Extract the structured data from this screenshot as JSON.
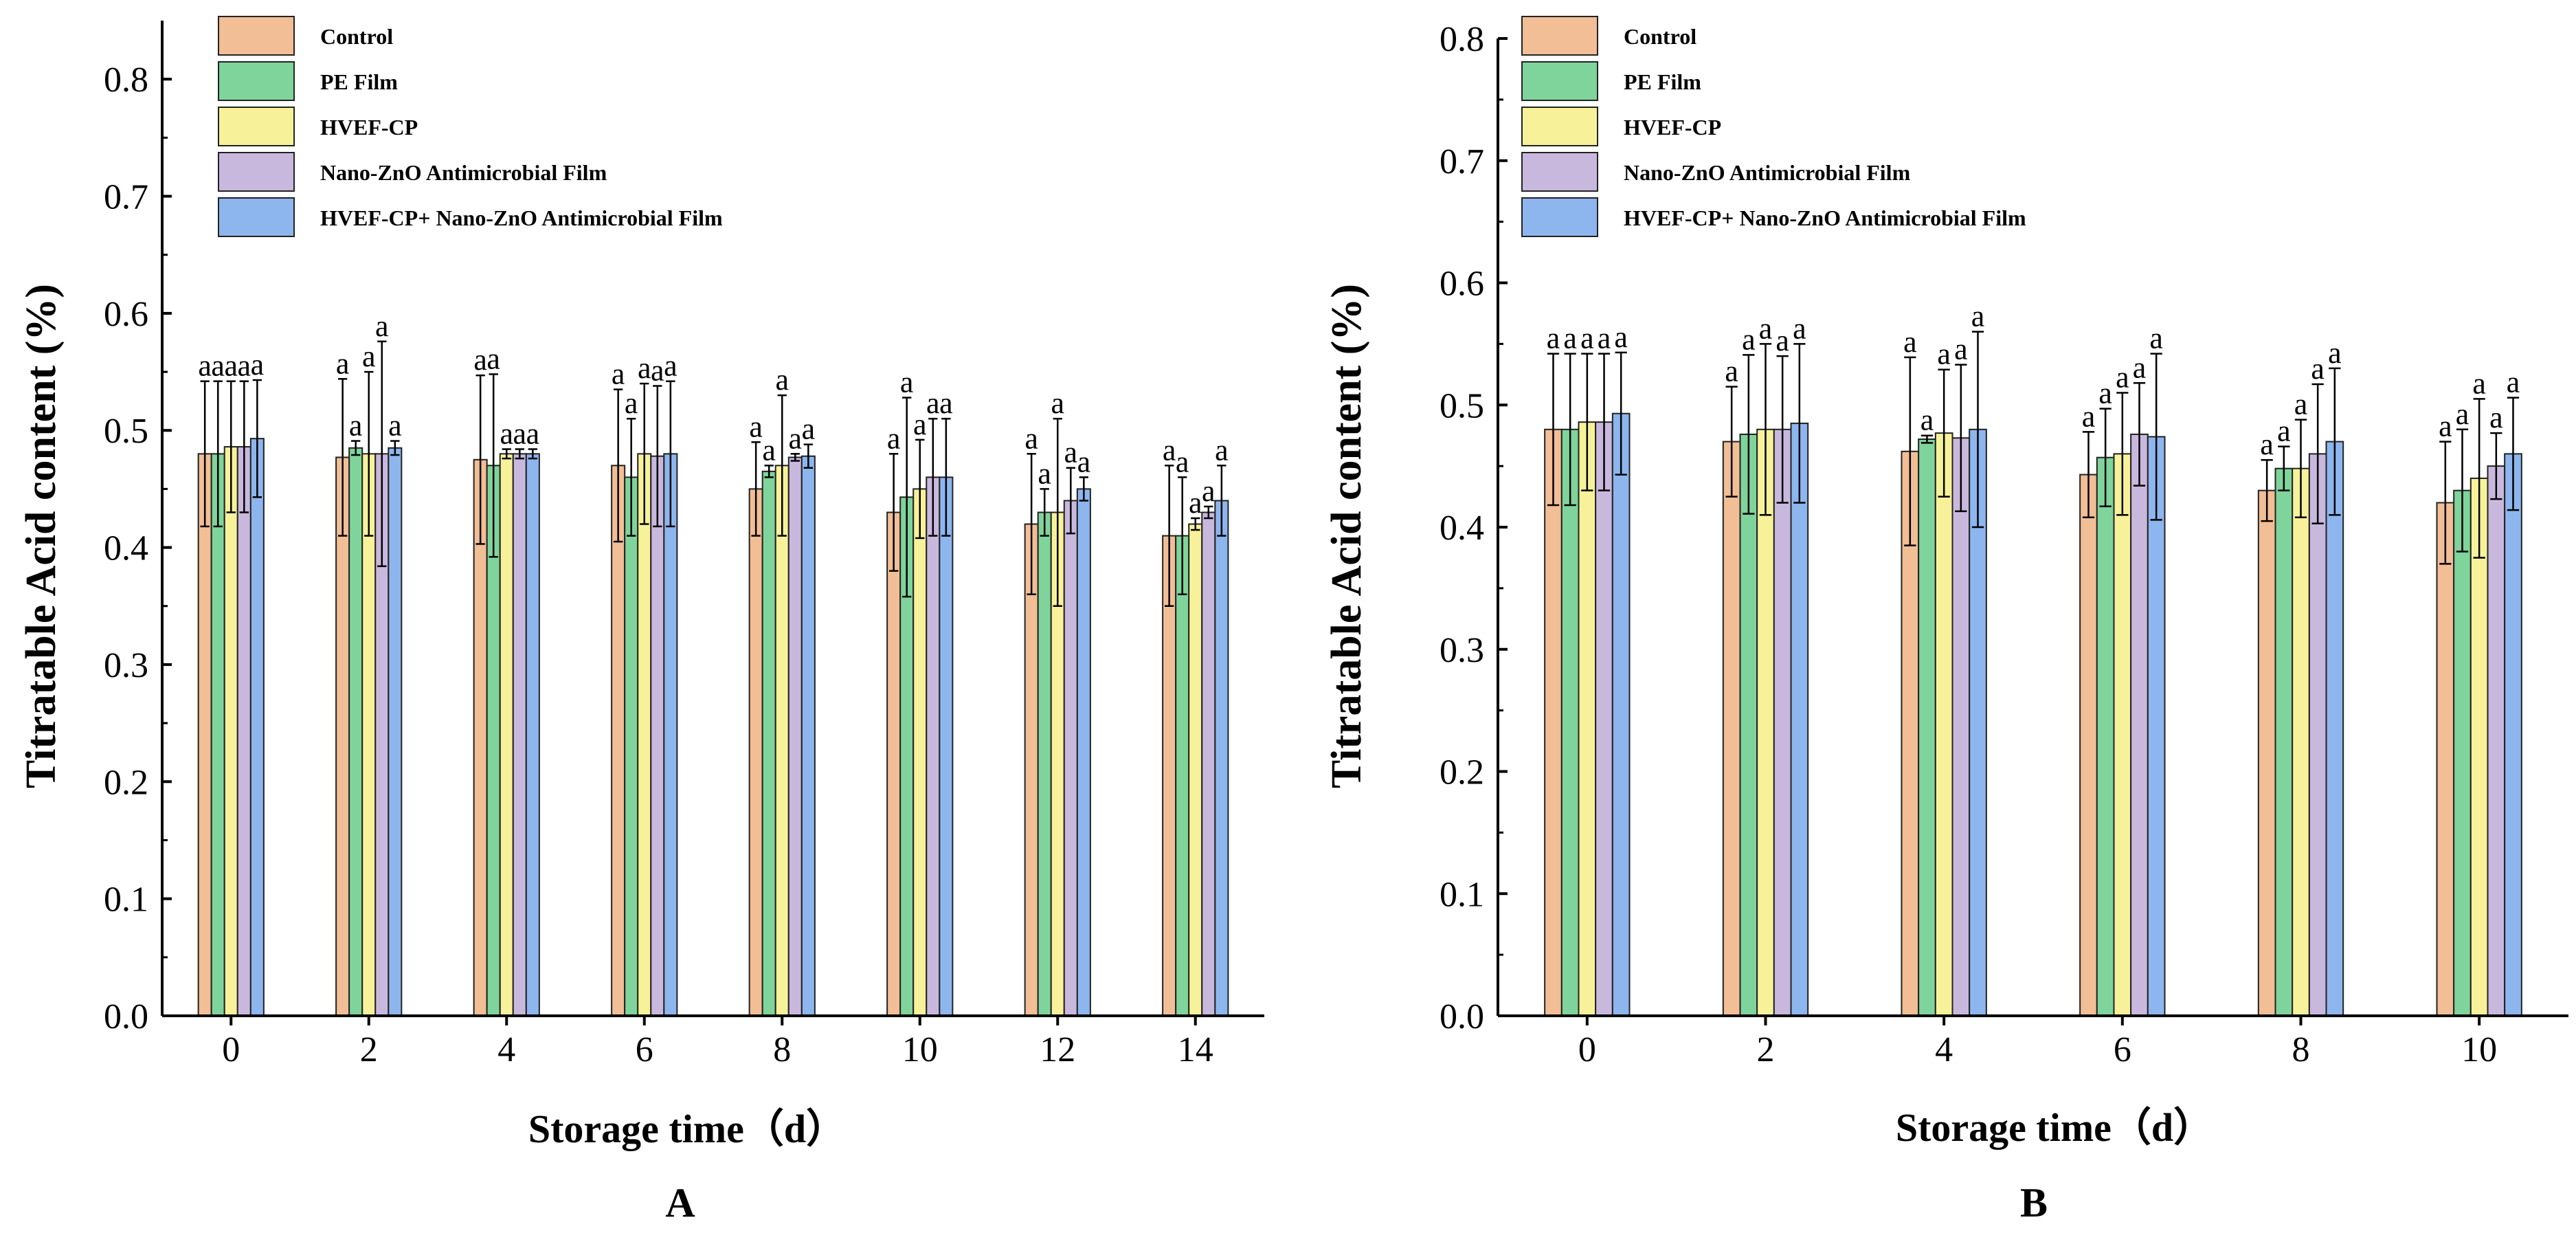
{
  "colors": {
    "series": [
      "#F2BE95",
      "#7FD49B",
      "#F7F29A",
      "#C9B8DE",
      "#8DB6EE"
    ],
    "axis": "#000000"
  },
  "chart_data": [
    {
      "type": "bar",
      "panel_label": "A",
      "xlabel": "Storage time（d）",
      "ylabel": "Titratable Acid content (%)",
      "ylim": [
        0,
        0.85
      ],
      "yticks": [
        "0.0",
        "0.1",
        "0.2",
        "0.3",
        "0.4",
        "0.5",
        "0.6",
        "0.7",
        "0.8"
      ],
      "categories": [
        "0",
        "2",
        "4",
        "6",
        "8",
        "10",
        "12",
        "14"
      ],
      "legend_position": "top-left",
      "series": [
        {
          "name": "Control",
          "values": [
            0.48,
            0.477,
            0.475,
            0.47,
            0.45,
            0.43,
            0.42,
            0.41
          ],
          "errors": [
            0.062,
            0.067,
            0.072,
            0.065,
            0.04,
            0.05,
            0.06,
            0.06
          ],
          "labels": [
            "a",
            "a",
            "a",
            "a",
            "a",
            "a",
            "a",
            "a"
          ]
        },
        {
          "name": "PE Film",
          "values": [
            0.48,
            0.485,
            0.47,
            0.46,
            0.465,
            0.443,
            0.43,
            0.41
          ],
          "errors": [
            0.062,
            0.006,
            0.078,
            0.05,
            0.005,
            0.085,
            0.02,
            0.05
          ],
          "labels": [
            "a",
            "a",
            "a",
            "a",
            "a",
            "a",
            "a",
            "a"
          ]
        },
        {
          "name": "HVEF-CP",
          "values": [
            0.486,
            0.48,
            0.48,
            0.48,
            0.47,
            0.45,
            0.43,
            0.42
          ],
          "errors": [
            0.056,
            0.07,
            0.004,
            0.06,
            0.06,
            0.042,
            0.08,
            0.005
          ],
          "labels": [
            "a",
            "a",
            "a",
            "a",
            "a",
            "a",
            "a",
            "a"
          ]
        },
        {
          "name": "Nano-ZnO Antimicrobial Film",
          "values": [
            0.486,
            0.48,
            0.48,
            0.478,
            0.477,
            0.46,
            0.44,
            0.43
          ],
          "errors": [
            0.056,
            0.096,
            0.004,
            0.06,
            0.003,
            0.05,
            0.028,
            0.005
          ],
          "labels": [
            "a",
            "a",
            "a",
            "a",
            "a",
            "a",
            "a",
            "a"
          ]
        },
        {
          "name": "HVEF-CP+ Nano-ZnO Antimicrobial Film",
          "values": [
            0.493,
            0.485,
            0.48,
            0.48,
            0.478,
            0.46,
            0.45,
            0.44
          ],
          "errors": [
            0.05,
            0.006,
            0.004,
            0.062,
            0.01,
            0.05,
            0.01,
            0.03
          ],
          "labels": [
            "a",
            "a",
            "a",
            "a",
            "a",
            "a",
            "a",
            "a"
          ]
        }
      ]
    },
    {
      "type": "bar",
      "panel_label": "B",
      "xlabel": "Storage time（d）",
      "ylabel": "Titratable Acid content (%)",
      "ylim": [
        0,
        0.8
      ],
      "yticks": [
        "0.0",
        "0.1",
        "0.2",
        "0.3",
        "0.4",
        "0.5",
        "0.6",
        "0.7",
        "0.8"
      ],
      "categories": [
        "0",
        "2",
        "4",
        "6",
        "8",
        "10"
      ],
      "legend_position": "top-left",
      "series": [
        {
          "name": "Control",
          "values": [
            0.48,
            0.47,
            0.462,
            0.443,
            0.43,
            0.42
          ],
          "errors": [
            0.062,
            0.045,
            0.077,
            0.035,
            0.025,
            0.05
          ],
          "labels": [
            "a",
            "a",
            "a",
            "a",
            "a",
            "a"
          ]
        },
        {
          "name": "PE Film",
          "values": [
            0.48,
            0.476,
            0.472,
            0.457,
            0.448,
            0.43
          ],
          "errors": [
            0.062,
            0.065,
            0.003,
            0.04,
            0.018,
            0.05
          ],
          "labels": [
            "a",
            "a",
            "a",
            "a",
            "a",
            "a"
          ]
        },
        {
          "name": "HVEF-CP",
          "values": [
            0.486,
            0.48,
            0.477,
            0.46,
            0.448,
            0.44
          ],
          "errors": [
            0.056,
            0.07,
            0.052,
            0.05,
            0.04,
            0.065
          ],
          "labels": [
            "a",
            "a",
            "a",
            "a",
            "a",
            "a"
          ]
        },
        {
          "name": "Nano-ZnO Antimicrobial Film",
          "values": [
            0.486,
            0.48,
            0.473,
            0.476,
            0.46,
            0.45
          ],
          "errors": [
            0.056,
            0.06,
            0.06,
            0.042,
            0.057,
            0.027
          ],
          "labels": [
            "a",
            "a",
            "a",
            "a",
            "a",
            "a"
          ]
        },
        {
          "name": "HVEF-CP+ Nano-ZnO Antimicrobial Film",
          "values": [
            0.493,
            0.485,
            0.48,
            0.474,
            0.47,
            0.46
          ],
          "errors": [
            0.05,
            0.065,
            0.08,
            0.068,
            0.06,
            0.046
          ],
          "labels": [
            "a",
            "a",
            "a",
            "a",
            "a",
            "a"
          ]
        }
      ]
    }
  ]
}
